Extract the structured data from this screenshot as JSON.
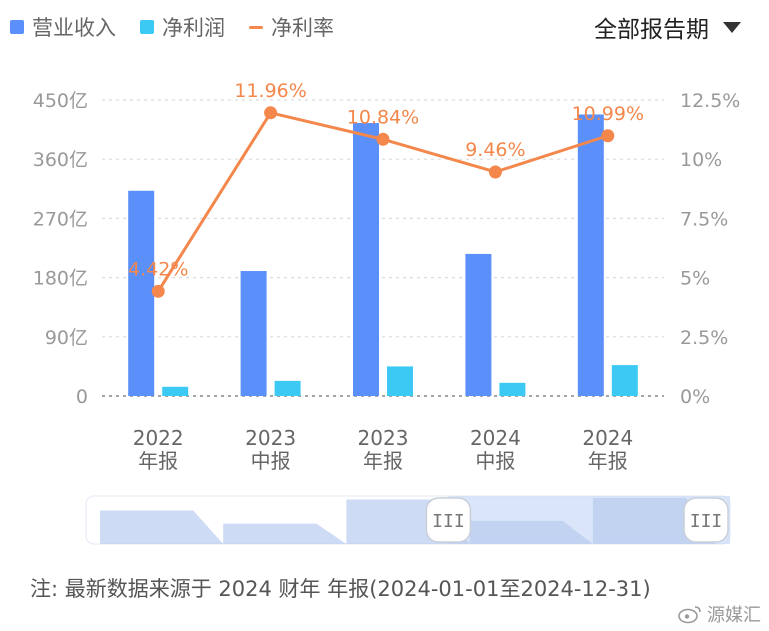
{
  "legend": {
    "revenue": "营业收入",
    "profit": "净利润",
    "margin": "净利率"
  },
  "period_select": {
    "label": "全部报告期"
  },
  "colors": {
    "revenue": "#5b8ff9",
    "profit": "#3ccaf5",
    "margin": "#f4874b",
    "slider_fill": "#cddcf7"
  },
  "chart_data": {
    "type": "bar",
    "categories": [
      [
        "2022",
        "年报"
      ],
      [
        "2023",
        "中报"
      ],
      [
        "2023",
        "年报"
      ],
      [
        "2024",
        "中报"
      ],
      [
        "2024",
        "年报"
      ]
    ],
    "series": [
      {
        "name": "营业收入",
        "type": "bar",
        "axis": "left",
        "values": [
          312,
          190,
          415,
          216,
          428
        ]
      },
      {
        "name": "净利润",
        "type": "bar",
        "axis": "left",
        "values": [
          14,
          23,
          45,
          20,
          47
        ]
      },
      {
        "name": "净利率",
        "type": "line",
        "axis": "right",
        "values": [
          4.42,
          11.96,
          10.84,
          9.46,
          10.99
        ],
        "labels": [
          "4.42%",
          "11.96%",
          "10.84%",
          "9.46%",
          "10.99%"
        ]
      }
    ],
    "y_left": {
      "min": 0,
      "max": 450,
      "ticks": [
        0,
        90,
        180,
        270,
        360,
        450
      ],
      "tick_labels": [
        "0",
        "90亿",
        "180亿",
        "270亿",
        "360亿",
        "450亿"
      ]
    },
    "y_right": {
      "min": 0,
      "max": 12.5,
      "ticks": [
        0,
        2.5,
        5,
        7.5,
        10,
        12.5
      ],
      "tick_labels": [
        "0%",
        "2.5%",
        "5%",
        "7.5%",
        "10%",
        "12.5%"
      ]
    },
    "grid": true,
    "legend_position": "top-left"
  },
  "slider": {
    "handle_label": "III",
    "range_start": 0.6,
    "range_end": 1.0
  },
  "footnote": "注: 最新数据来源于 2024 财年 年报(2024-01-01至2024-12-31)",
  "watermark": "源媒汇"
}
